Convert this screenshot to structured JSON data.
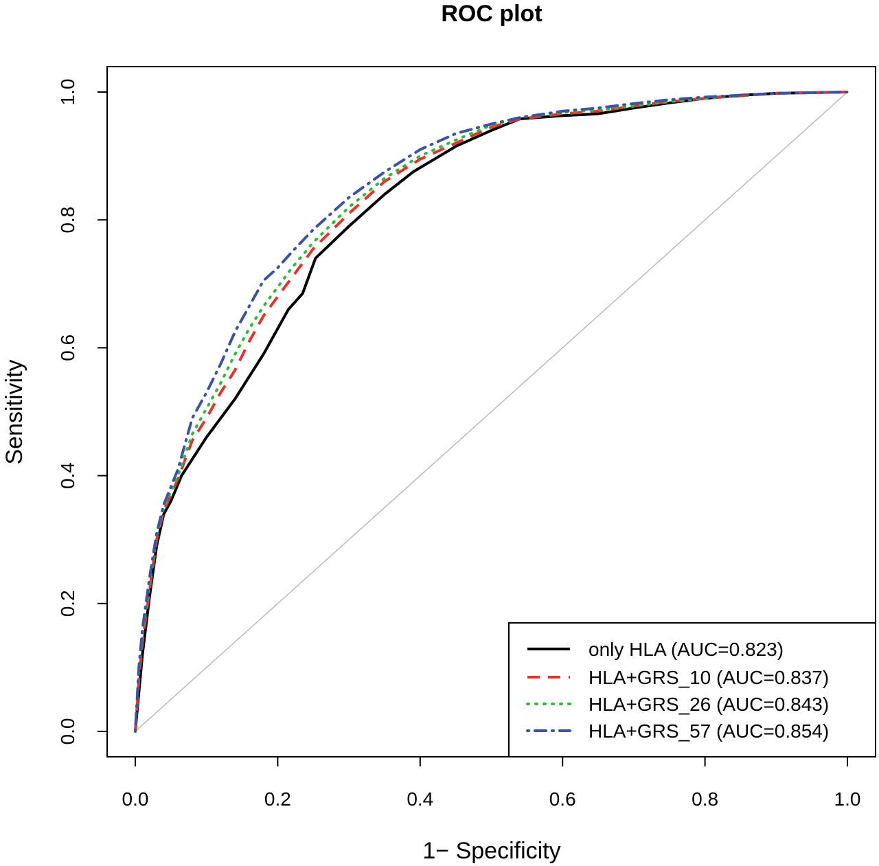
{
  "chart_data": {
    "type": "line",
    "title": "ROC plot",
    "xlabel": "1− Specificity",
    "ylabel": "Sensitivity",
    "xlim": [
      0,
      1
    ],
    "ylim": [
      0,
      1
    ],
    "x_ticks": [
      "0.0",
      "0.2",
      "0.4",
      "0.6",
      "0.8",
      "1.0"
    ],
    "y_ticks": [
      "0.0",
      "0.2",
      "0.4",
      "0.6",
      "0.8",
      "1.0"
    ],
    "grid": false,
    "legend_position": "bottom-right",
    "reference_line": {
      "points": [
        [
          0,
          0
        ],
        [
          1,
          1
        ]
      ],
      "color": "#bdbdbd"
    },
    "series": [
      {
        "name": "only HLA (AUC=0.823)",
        "color": "#000000",
        "dash": "solid",
        "points": [
          [
            0,
            0
          ],
          [
            0.005,
            0.06
          ],
          [
            0.01,
            0.12
          ],
          [
            0.02,
            0.21
          ],
          [
            0.03,
            0.29
          ],
          [
            0.04,
            0.34
          ],
          [
            0.05,
            0.36
          ],
          [
            0.065,
            0.4
          ],
          [
            0.1,
            0.46
          ],
          [
            0.14,
            0.52
          ],
          [
            0.16,
            0.555
          ],
          [
            0.18,
            0.59
          ],
          [
            0.215,
            0.66
          ],
          [
            0.235,
            0.685
          ],
          [
            0.253,
            0.74
          ],
          [
            0.3,
            0.79
          ],
          [
            0.35,
            0.84
          ],
          [
            0.39,
            0.875
          ],
          [
            0.45,
            0.915
          ],
          [
            0.5,
            0.94
          ],
          [
            0.54,
            0.958
          ],
          [
            0.6,
            0.963
          ],
          [
            0.65,
            0.966
          ],
          [
            0.7,
            0.975
          ],
          [
            0.75,
            0.983
          ],
          [
            0.8,
            0.99
          ],
          [
            0.85,
            0.995
          ],
          [
            0.9,
            0.998
          ],
          [
            1,
            1
          ]
        ]
      },
      {
        "name": "HLA+GRS_10 (AUC=0.837)",
        "color": "#e8302d",
        "dash": "dashed",
        "points": [
          [
            0,
            0
          ],
          [
            0.005,
            0.08
          ],
          [
            0.01,
            0.14
          ],
          [
            0.02,
            0.22
          ],
          [
            0.03,
            0.3
          ],
          [
            0.04,
            0.345
          ],
          [
            0.06,
            0.395
          ],
          [
            0.08,
            0.455
          ],
          [
            0.1,
            0.49
          ],
          [
            0.12,
            0.53
          ],
          [
            0.14,
            0.565
          ],
          [
            0.16,
            0.61
          ],
          [
            0.18,
            0.65
          ],
          [
            0.2,
            0.68
          ],
          [
            0.22,
            0.71
          ],
          [
            0.25,
            0.755
          ],
          [
            0.3,
            0.81
          ],
          [
            0.35,
            0.86
          ],
          [
            0.4,
            0.895
          ],
          [
            0.45,
            0.92
          ],
          [
            0.5,
            0.945
          ],
          [
            0.54,
            0.958
          ],
          [
            0.6,
            0.966
          ],
          [
            0.65,
            0.97
          ],
          [
            0.7,
            0.978
          ],
          [
            0.75,
            0.985
          ],
          [
            0.8,
            0.99
          ],
          [
            0.9,
            0.998
          ],
          [
            1,
            1
          ]
        ]
      },
      {
        "name": "HLA+GRS_26 (AUC=0.843)",
        "color": "#2dbb3a",
        "dash": "dotted",
        "points": [
          [
            0,
            0
          ],
          [
            0.005,
            0.09
          ],
          [
            0.01,
            0.15
          ],
          [
            0.02,
            0.23
          ],
          [
            0.03,
            0.305
          ],
          [
            0.04,
            0.35
          ],
          [
            0.06,
            0.4
          ],
          [
            0.08,
            0.465
          ],
          [
            0.1,
            0.505
          ],
          [
            0.12,
            0.545
          ],
          [
            0.14,
            0.59
          ],
          [
            0.16,
            0.63
          ],
          [
            0.18,
            0.665
          ],
          [
            0.2,
            0.695
          ],
          [
            0.22,
            0.725
          ],
          [
            0.25,
            0.765
          ],
          [
            0.3,
            0.82
          ],
          [
            0.35,
            0.865
          ],
          [
            0.4,
            0.9
          ],
          [
            0.45,
            0.925
          ],
          [
            0.5,
            0.948
          ],
          [
            0.54,
            0.96
          ],
          [
            0.6,
            0.968
          ],
          [
            0.65,
            0.972
          ],
          [
            0.7,
            0.978
          ],
          [
            0.75,
            0.985
          ],
          [
            0.8,
            0.99
          ],
          [
            0.9,
            0.998
          ],
          [
            1,
            1
          ]
        ]
      },
      {
        "name": "HLA+GRS_57 (AUC=0.854)",
        "color": "#3a53a4",
        "dash": "dotdash",
        "points": [
          [
            0,
            0
          ],
          [
            0.005,
            0.1
          ],
          [
            0.01,
            0.16
          ],
          [
            0.02,
            0.24
          ],
          [
            0.03,
            0.31
          ],
          [
            0.04,
            0.355
          ],
          [
            0.06,
            0.41
          ],
          [
            0.08,
            0.49
          ],
          [
            0.1,
            0.53
          ],
          [
            0.12,
            0.575
          ],
          [
            0.14,
            0.625
          ],
          [
            0.16,
            0.665
          ],
          [
            0.18,
            0.705
          ],
          [
            0.2,
            0.725
          ],
          [
            0.22,
            0.75
          ],
          [
            0.25,
            0.785
          ],
          [
            0.3,
            0.835
          ],
          [
            0.35,
            0.875
          ],
          [
            0.4,
            0.91
          ],
          [
            0.45,
            0.935
          ],
          [
            0.5,
            0.95
          ],
          [
            0.54,
            0.96
          ],
          [
            0.6,
            0.97
          ],
          [
            0.65,
            0.975
          ],
          [
            0.7,
            0.982
          ],
          [
            0.75,
            0.988
          ],
          [
            0.8,
            0.992
          ],
          [
            0.9,
            0.998
          ],
          [
            1,
            1
          ]
        ]
      }
    ]
  }
}
